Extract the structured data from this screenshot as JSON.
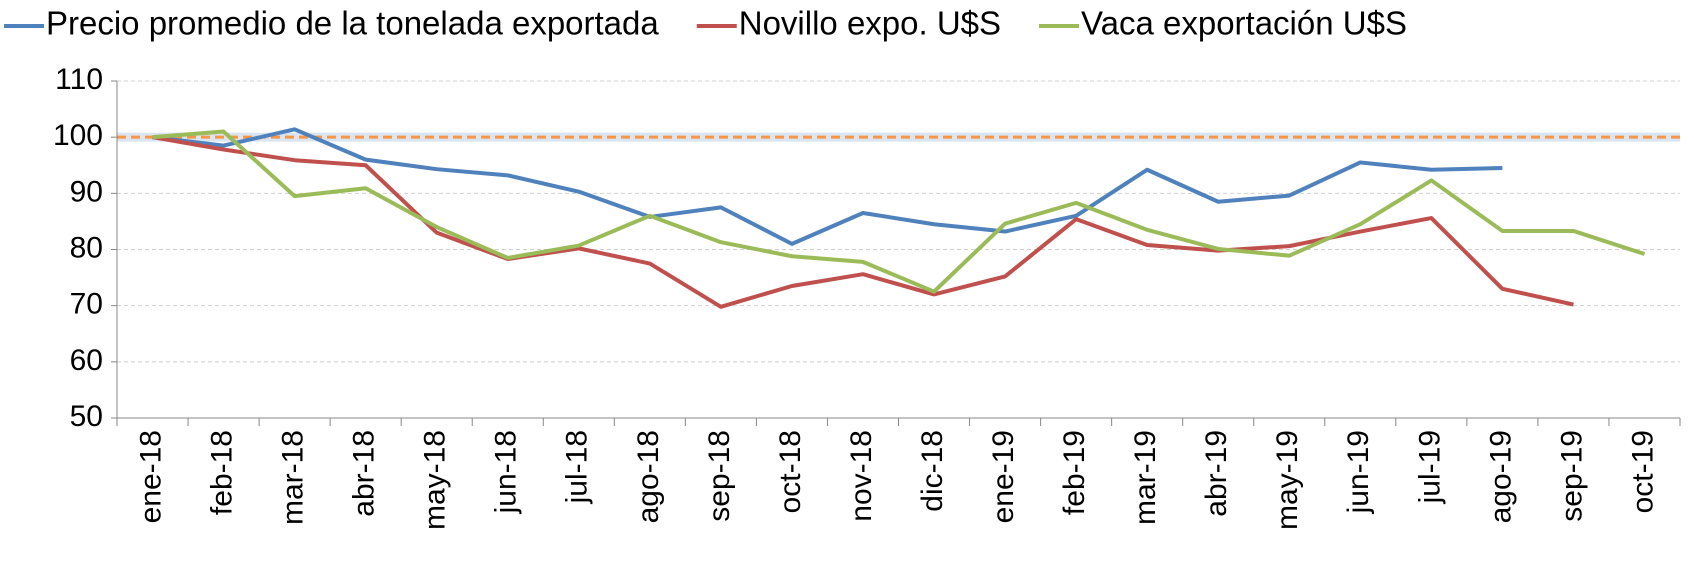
{
  "chart_data": {
    "type": "line",
    "categories": [
      "ene-18",
      "feb-18",
      "mar-18",
      "abr-18",
      "may-18",
      "jun-18",
      "jul-18",
      "ago-18",
      "sep-18",
      "oct-18",
      "nov-18",
      "dic-18",
      "ene-19",
      "feb-19",
      "mar-19",
      "abr-19",
      "may-19",
      "jun-19",
      "jul-19",
      "ago-19",
      "sep-19",
      "oct-19"
    ],
    "series": [
      {
        "name": "Precio promedio de la tonelada exportada",
        "color": "#4f81bd",
        "values": [
          100,
          98.5,
          101.4,
          96,
          94.3,
          93.2,
          90.3,
          85.8,
          87.5,
          81,
          86.5,
          84.5,
          83.2,
          86,
          94.2,
          88.5,
          89.6,
          95.5,
          94.2,
          94.5,
          null,
          null
        ]
      },
      {
        "name": "Novillo expo. U$S",
        "color": "#c0504d",
        "values": [
          100,
          97.8,
          95.9,
          95,
          83,
          78.3,
          80.2,
          77.5,
          69.8,
          73.5,
          75.6,
          72,
          75.2,
          85.4,
          80.8,
          79.8,
          80.6,
          83.2,
          85.6,
          73,
          70.2,
          null
        ]
      },
      {
        "name": "Vaca exportación U$S",
        "color": "#9bbb59",
        "values": [
          100,
          101,
          89.5,
          90.9,
          84,
          78.5,
          80.7,
          86,
          81.3,
          78.8,
          77.8,
          72.5,
          84.6,
          88.3,
          83.5,
          80.1,
          78.9,
          84.5,
          92.3,
          83.3,
          83.3,
          79.2
        ]
      }
    ],
    "ylim": [
      50,
      110
    ],
    "yticks": [
      50,
      60,
      70,
      80,
      90,
      100,
      110
    ],
    "grid": true,
    "reference_line": {
      "value": 100,
      "color": "#f79646"
    },
    "legend": "top"
  }
}
